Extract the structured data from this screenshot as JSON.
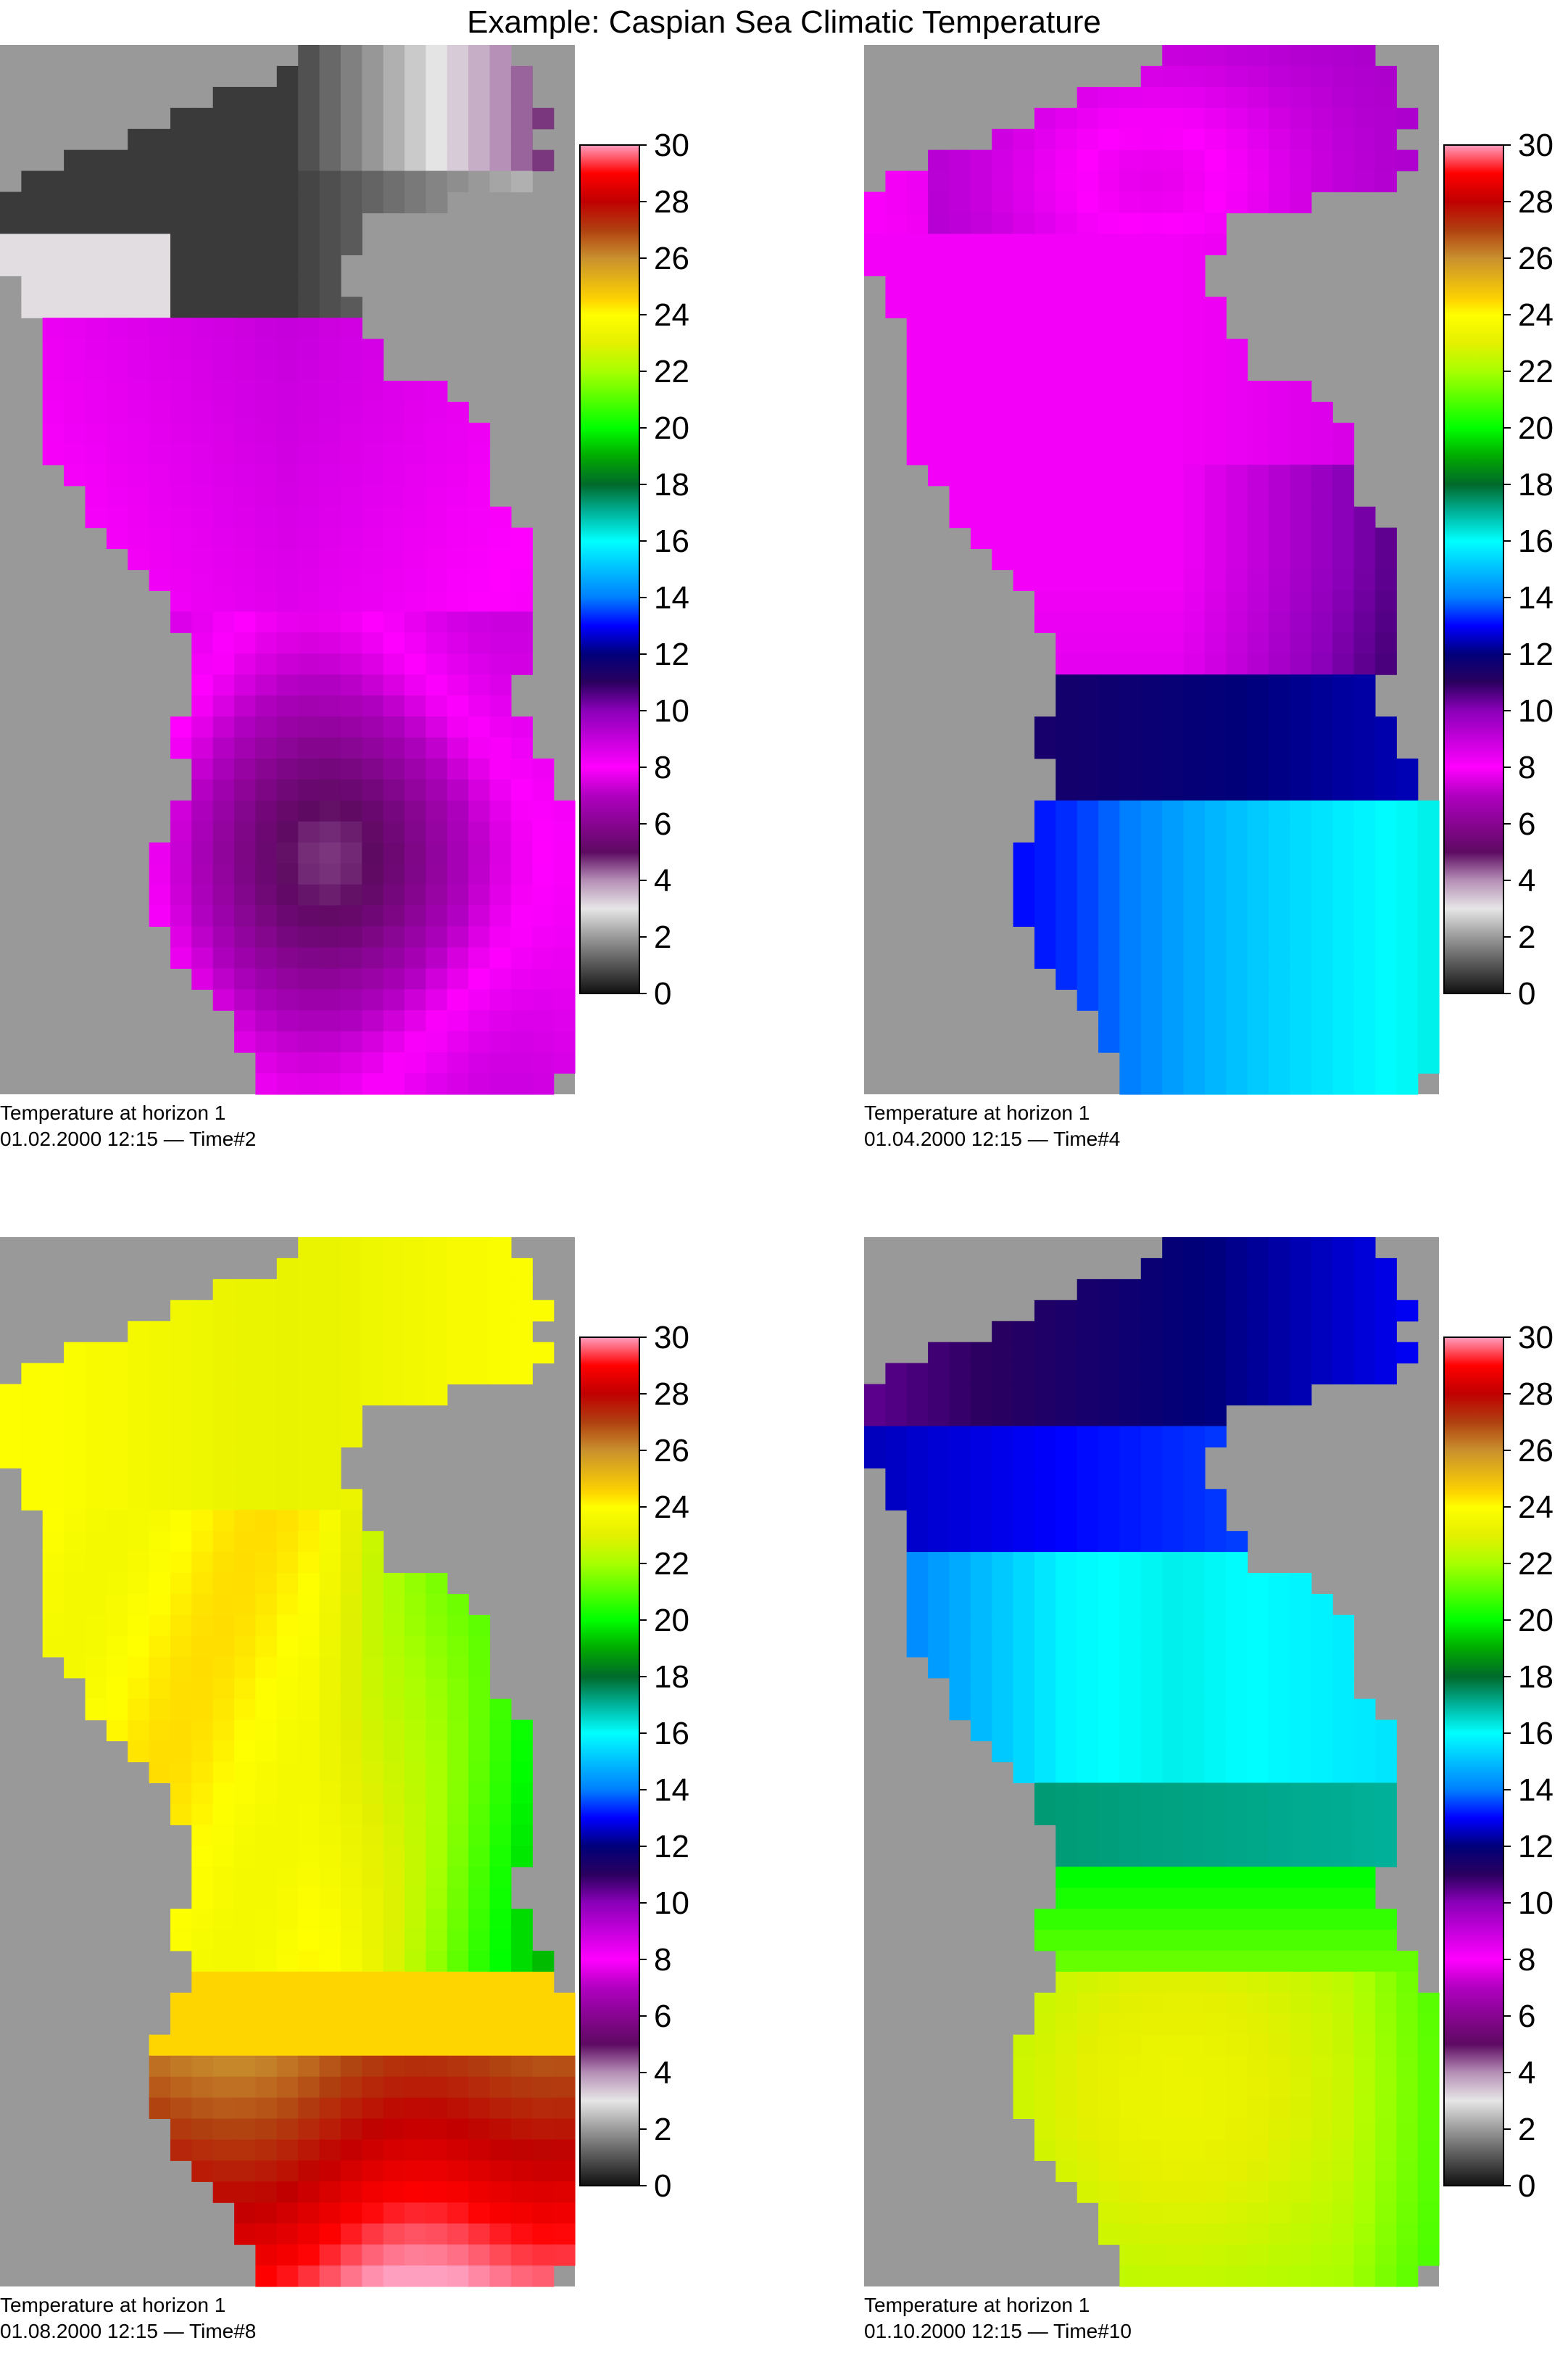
{
  "title": "Example: Caspian Sea Climatic Temperature",
  "chart_data": [
    {
      "type": "heatmap",
      "caption_line1": "Temperature at horizon 1",
      "caption_line2": "01.02.2000 12:15 — Time#2",
      "colorbar": {
        "min": 0,
        "max": 30,
        "ticks": [
          "30",
          "28",
          "26",
          "24",
          "22",
          "20",
          "18",
          "16",
          "14",
          "12",
          "10",
          "8",
          "6",
          "4",
          "2",
          "0"
        ]
      },
      "approx_temperature_range": [
        0,
        11
      ]
    },
    {
      "type": "heatmap",
      "caption_line1": "Temperature at horizon 1",
      "caption_line2": "01.04.2000 12:15 — Time#4",
      "colorbar": {
        "min": 0,
        "max": 30,
        "ticks": [
          "30",
          "28",
          "26",
          "24",
          "22",
          "20",
          "18",
          "16",
          "14",
          "12",
          "10",
          "8",
          "6",
          "4",
          "2",
          "0"
        ]
      },
      "approx_temperature_range": [
        8,
        16
      ]
    },
    {
      "type": "heatmap",
      "caption_line1": "Temperature at horizon 1",
      "caption_line2": "01.08.2000 12:15 — Time#8",
      "colorbar": {
        "min": 0,
        "max": 30,
        "ticks": [
          "30",
          "28",
          "26",
          "24",
          "22",
          "20",
          "18",
          "16",
          "14",
          "12",
          "10",
          "8",
          "6",
          "4",
          "2",
          "0"
        ]
      },
      "approx_temperature_range": [
        18,
        29
      ]
    },
    {
      "type": "heatmap",
      "caption_line1": "Temperature at horizon 1",
      "caption_line2": "01.10.2000 12:15 — Time#10",
      "colorbar": {
        "min": 0,
        "max": 30,
        "ticks": [
          "30",
          "28",
          "26",
          "24",
          "22",
          "20",
          "18",
          "16",
          "14",
          "12",
          "10",
          "8",
          "6",
          "4",
          "2",
          "0"
        ]
      },
      "approx_temperature_range": [
        11,
        24
      ]
    }
  ]
}
